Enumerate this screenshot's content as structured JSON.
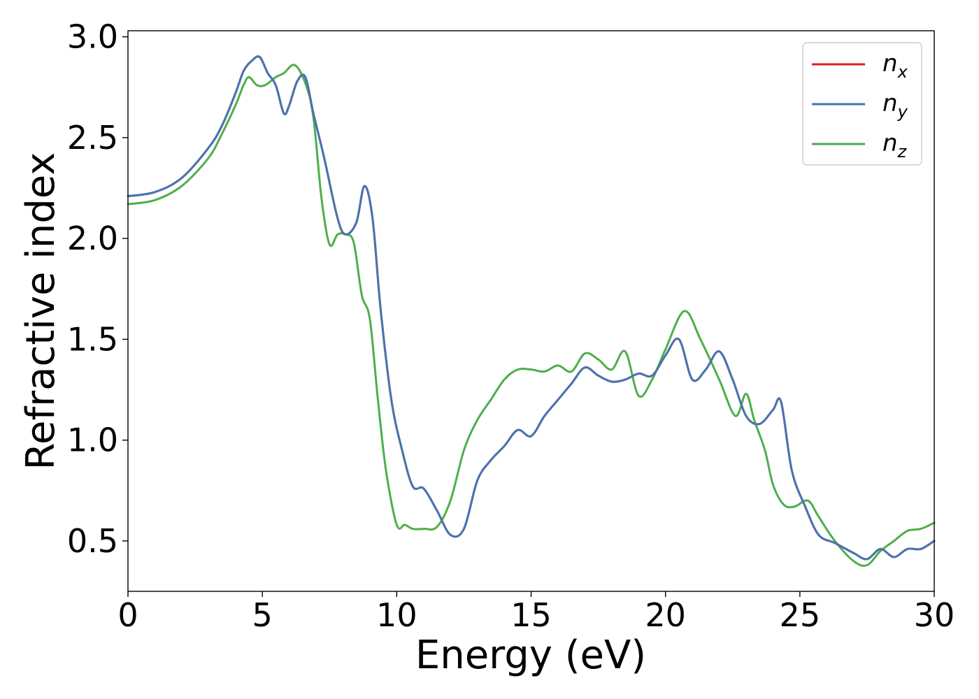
{
  "chart_data": {
    "type": "line",
    "xlabel": "Energy (eV)",
    "ylabel": "Refractive index",
    "xlim": [
      0,
      30
    ],
    "ylim": [
      0.25,
      3.03
    ],
    "xticks": [
      "0",
      "5",
      "10",
      "15",
      "20",
      "25",
      "30"
    ],
    "yticks": [
      "0.5",
      "1.0",
      "1.5",
      "2.0",
      "2.5",
      "3.0"
    ],
    "grid": false,
    "legend_position": "top-right",
    "series": [
      {
        "name": "n_x",
        "label_base": "n",
        "label_sub": "x",
        "color": "#e41a1c",
        "x": [
          0,
          1,
          2,
          3,
          3.5,
          4,
          4.3,
          4.6,
          4.9,
          5.2,
          5.5,
          5.8,
          6.0,
          6.3,
          6.6,
          6.9,
          7.3,
          7.8,
          8.1,
          8.5,
          8.8,
          9.1,
          9.4,
          9.8,
          10.2,
          10.6,
          11.0,
          11.5,
          12.0,
          12.5,
          13.0,
          13.5,
          14.0,
          14.5,
          15.0,
          15.5,
          16.0,
          16.5,
          17.0,
          17.5,
          18.0,
          18.5,
          19.0,
          19.5,
          20.0,
          20.5,
          21.0,
          21.5,
          22.0,
          22.5,
          23.0,
          23.5,
          24.0,
          24.3,
          24.7,
          25.2,
          25.7,
          26.3,
          27.0,
          27.5,
          28.0,
          28.5,
          29.0,
          29.5,
          30
        ],
        "y": [
          2.21,
          2.23,
          2.3,
          2.45,
          2.56,
          2.72,
          2.83,
          2.88,
          2.9,
          2.82,
          2.76,
          2.62,
          2.66,
          2.78,
          2.8,
          2.62,
          2.4,
          2.1,
          2.02,
          2.08,
          2.26,
          2.1,
          1.65,
          1.2,
          0.95,
          0.77,
          0.76,
          0.65,
          0.53,
          0.56,
          0.8,
          0.9,
          0.97,
          1.05,
          1.02,
          1.12,
          1.2,
          1.28,
          1.36,
          1.32,
          1.29,
          1.3,
          1.33,
          1.32,
          1.42,
          1.5,
          1.3,
          1.35,
          1.44,
          1.3,
          1.12,
          1.08,
          1.15,
          1.19,
          0.85,
          0.67,
          0.53,
          0.49,
          0.44,
          0.41,
          0.46,
          0.42,
          0.46,
          0.46,
          0.5
        ]
      },
      {
        "name": "n_y",
        "label_base": "n",
        "label_sub": "y",
        "color": "#4575b4",
        "x": [
          0,
          1,
          2,
          3,
          3.5,
          4,
          4.3,
          4.6,
          4.9,
          5.2,
          5.5,
          5.8,
          6.0,
          6.3,
          6.6,
          6.9,
          7.3,
          7.8,
          8.1,
          8.5,
          8.8,
          9.1,
          9.4,
          9.8,
          10.2,
          10.6,
          11.0,
          11.5,
          12.0,
          12.5,
          13.0,
          13.5,
          14.0,
          14.5,
          15.0,
          15.5,
          16.0,
          16.5,
          17.0,
          17.5,
          18.0,
          18.5,
          19.0,
          19.5,
          20.0,
          20.5,
          21.0,
          21.5,
          22.0,
          22.5,
          23.0,
          23.5,
          24.0,
          24.3,
          24.7,
          25.2,
          25.7,
          26.3,
          27.0,
          27.5,
          28.0,
          28.5,
          29.0,
          29.5,
          30
        ],
        "y": [
          2.21,
          2.23,
          2.3,
          2.45,
          2.56,
          2.72,
          2.83,
          2.88,
          2.9,
          2.82,
          2.76,
          2.62,
          2.66,
          2.78,
          2.8,
          2.62,
          2.4,
          2.1,
          2.02,
          2.08,
          2.26,
          2.1,
          1.65,
          1.2,
          0.95,
          0.77,
          0.76,
          0.65,
          0.53,
          0.56,
          0.8,
          0.9,
          0.97,
          1.05,
          1.02,
          1.12,
          1.2,
          1.28,
          1.36,
          1.32,
          1.29,
          1.3,
          1.33,
          1.32,
          1.42,
          1.5,
          1.3,
          1.35,
          1.44,
          1.3,
          1.12,
          1.08,
          1.15,
          1.19,
          0.85,
          0.67,
          0.53,
          0.49,
          0.44,
          0.41,
          0.46,
          0.42,
          0.46,
          0.46,
          0.5
        ]
      },
      {
        "name": "n_z",
        "label_base": "n",
        "label_sub": "z",
        "color": "#4daf4a",
        "x": [
          0,
          1,
          2,
          3,
          3.5,
          4,
          4.3,
          4.5,
          4.8,
          5.1,
          5.5,
          5.8,
          6.2,
          6.6,
          6.9,
          7.2,
          7.5,
          7.8,
          8.1,
          8.4,
          8.7,
          9.0,
          9.3,
          9.6,
          10.0,
          10.3,
          10.6,
          11.0,
          11.5,
          12.0,
          12.5,
          13.0,
          13.5,
          14.0,
          14.5,
          15.0,
          15.5,
          16.0,
          16.5,
          17.0,
          17.5,
          18.0,
          18.5,
          19.0,
          19.5,
          20.0,
          20.7,
          21.3,
          22.0,
          22.6,
          23.0,
          23.3,
          23.7,
          24.0,
          24.4,
          24.8,
          25.3,
          25.7,
          26.3,
          27.0,
          27.5,
          28.0,
          28.5,
          29.0,
          29.5,
          30
        ],
        "y": [
          2.17,
          2.19,
          2.26,
          2.4,
          2.52,
          2.66,
          2.76,
          2.8,
          2.76,
          2.76,
          2.8,
          2.82,
          2.86,
          2.77,
          2.6,
          2.2,
          1.97,
          2.02,
          2.02,
          1.98,
          1.72,
          1.6,
          1.2,
          0.85,
          0.58,
          0.58,
          0.56,
          0.56,
          0.57,
          0.7,
          0.95,
          1.1,
          1.2,
          1.3,
          1.35,
          1.35,
          1.34,
          1.37,
          1.34,
          1.43,
          1.4,
          1.35,
          1.44,
          1.22,
          1.3,
          1.45,
          1.64,
          1.5,
          1.3,
          1.12,
          1.23,
          1.1,
          0.95,
          0.78,
          0.68,
          0.67,
          0.7,
          0.62,
          0.5,
          0.4,
          0.38,
          0.45,
          0.5,
          0.55,
          0.56,
          0.59
        ]
      }
    ]
  }
}
